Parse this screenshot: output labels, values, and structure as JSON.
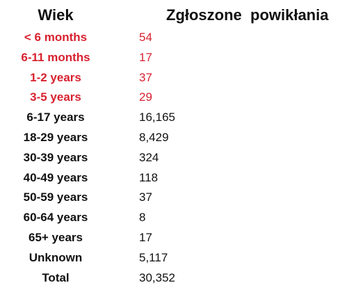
{
  "header": {
    "age": "Wiek",
    "count": "Zgłoszone  powikłania"
  },
  "colors": {
    "highlight": "#d8212f",
    "text": "#111111"
  },
  "rows": [
    {
      "age": "< 6 months",
      "count": "54",
      "highlight": true
    },
    {
      "age": "6-11 months",
      "count": "17",
      "highlight": true
    },
    {
      "age": "1-2 years",
      "count": "37",
      "highlight": true
    },
    {
      "age": "3-5 years",
      "count": "29",
      "highlight": true
    },
    {
      "age": "6-17 years",
      "count": "16,165",
      "highlight": false
    },
    {
      "age": "18-29 years",
      "count": "8,429",
      "highlight": false
    },
    {
      "age": "30-39 years",
      "count": "324",
      "highlight": false
    },
    {
      "age": "40-49 years",
      "count": "118",
      "highlight": false
    },
    {
      "age": "50-59 years",
      "count": "37",
      "highlight": false
    },
    {
      "age": "60-64 years",
      "count": "8",
      "highlight": false
    },
    {
      "age": "65+ years",
      "count": "17",
      "highlight": false
    },
    {
      "age": "Unknown",
      "count": "5,117",
      "highlight": false
    },
    {
      "age": "Total",
      "count": "30,352",
      "highlight": false
    }
  ]
}
